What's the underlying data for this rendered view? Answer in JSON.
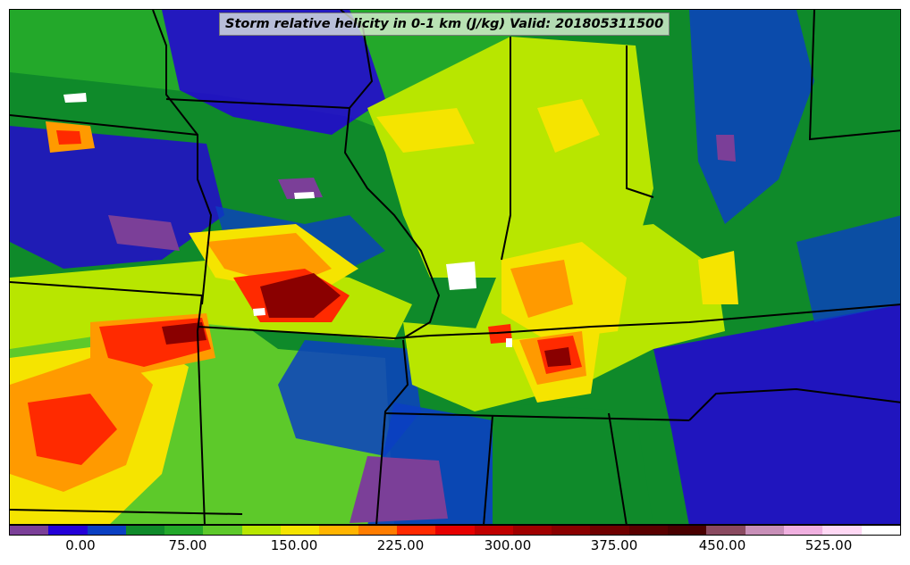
{
  "title": "Storm relative helicity in 0-1 km (J/kg) Valid: 201805311500",
  "colorbar": {
    "colors": [
      "#7b3f98",
      "#2300d8",
      "#0a3fc2",
      "#0f8a2a",
      "#23a82a",
      "#5dc92a",
      "#b8e600",
      "#f5e400",
      "#ffb400",
      "#ff7d00",
      "#ff2a00",
      "#e60000",
      "#c00000",
      "#a00000",
      "#8a0000",
      "#700000",
      "#5a0000",
      "#4a0000",
      "#8a4a60",
      "#c88fb8",
      "#f0b0e0",
      "#ffd8f4",
      "#ffffff"
    ],
    "tick_labels": [
      "0.00",
      "75.00",
      "150.00",
      "225.00",
      "300.00",
      "375.00",
      "450.00",
      "525.00"
    ]
  },
  "map": {
    "field": "storm-relative helicity",
    "palette": {
      "purple": "#7b3f98",
      "blue": "#2300d8",
      "darkgreen": "#0f8a2a",
      "green": "#5dc92a",
      "yellow": "#b8e600",
      "gold": "#f5e400",
      "orange": "#ff9a00",
      "red": "#ff2a00",
      "darkred": "#8a0000",
      "white": "#ffffff"
    }
  }
}
